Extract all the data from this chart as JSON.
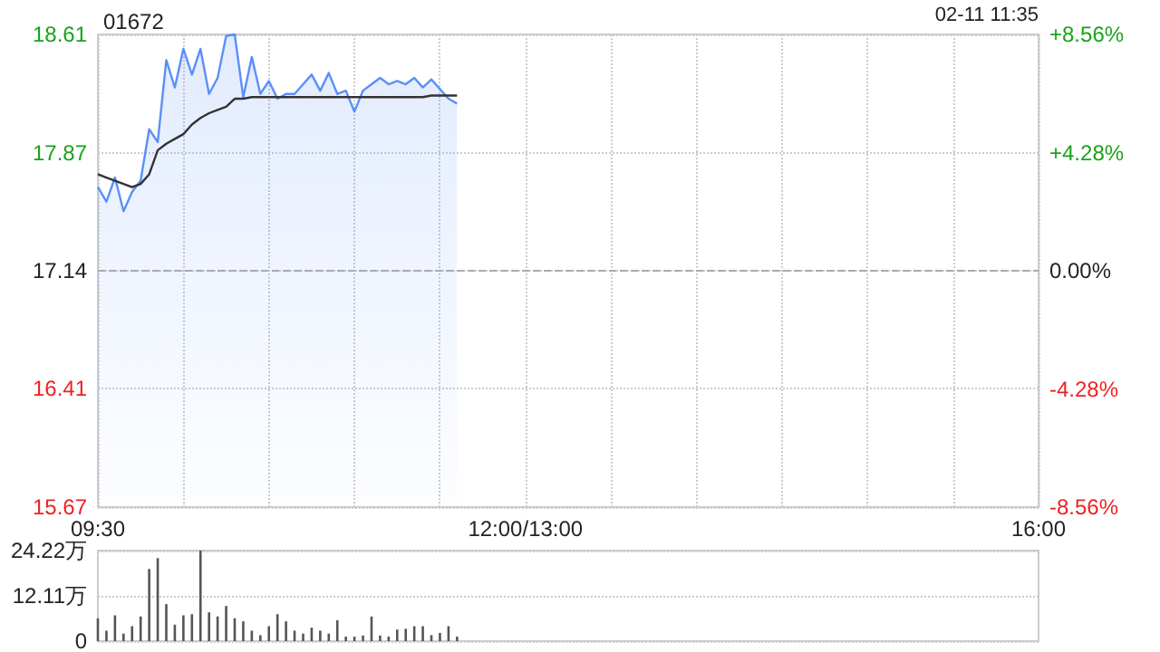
{
  "chart_data": [
    {
      "type": "area",
      "title": "01672",
      "annotations": [
        "02-11 11:35"
      ],
      "categories": [
        "09:30",
        null,
        null,
        null,
        null,
        null,
        null,
        null,
        null,
        null,
        null,
        null,
        null,
        null,
        null,
        null,
        null,
        null,
        null,
        null,
        null,
        null,
        null,
        null,
        null,
        null,
        null,
        null,
        null,
        null,
        null,
        null,
        null,
        null,
        null,
        null,
        null,
        null,
        null,
        null,
        null,
        null,
        null,
        null,
        null,
        null,
        null,
        null,
        null,
        null,
        "12:00/13:00",
        null,
        null,
        null,
        null,
        null,
        null,
        null,
        null,
        null,
        null,
        null,
        null,
        null,
        null,
        null,
        null,
        null,
        null,
        null,
        null,
        null,
        null,
        null,
        null,
        null,
        null,
        null,
        null,
        null,
        null,
        null,
        null,
        null,
        null,
        null,
        null,
        null,
        null,
        null,
        null,
        null,
        null,
        null,
        null,
        null,
        null,
        null,
        null,
        null,
        null,
        null,
        null,
        null,
        null,
        null,
        null,
        null,
        null,
        null,
        "16:00"
      ],
      "ylim": [
        15.67,
        18.61
      ],
      "yticks": [
        15.67,
        16.41,
        17.14,
        17.87,
        18.61
      ],
      "y2lim": [
        -8.56,
        8.56
      ],
      "y2ticks": [
        {
          "value": -8.56,
          "label": "-8.56%"
        },
        {
          "value": -4.28,
          "label": "-4.28%"
        },
        {
          "value": 0,
          "label": "0.00%"
        },
        {
          "value": 4.28,
          "label": "+4.28%"
        },
        {
          "value": 8.56,
          "label": "+8.56%"
        }
      ],
      "ref_lines": [
        {
          "axis": "y",
          "value": 17.14,
          "line_style": "dashed",
          "color": "#aaaaaa"
        }
      ],
      "grid": true,
      "marker": "none",
      "series": [
        {
          "color": "#5b8ff9",
          "values": [
            17.66,
            17.57,
            17.72,
            17.51,
            17.63,
            17.7,
            18.02,
            17.94,
            18.45,
            18.28,
            18.52,
            18.36,
            18.52,
            18.24,
            18.34,
            18.6,
            18.61,
            18.22,
            18.47,
            18.24,
            18.32,
            18.21,
            18.24,
            18.24,
            18.3,
            18.36,
            18.26,
            18.37,
            18.24,
            18.26,
            18.13,
            18.26,
            18.3,
            18.34,
            18.3,
            18.32,
            18.3,
            18.34,
            18.28,
            18.33,
            18.27,
            18.21,
            18.18,
            null,
            null,
            null,
            null,
            null,
            null,
            null,
            null,
            null,
            null,
            null,
            null,
            null,
            null,
            null,
            null,
            null,
            null,
            null,
            null,
            null,
            null,
            null,
            null,
            null,
            null,
            null,
            null,
            null,
            null,
            null,
            null,
            null,
            null,
            null,
            null,
            null,
            null,
            null,
            null,
            null,
            null,
            null,
            null,
            null,
            null,
            null,
            null,
            null,
            null,
            null,
            null,
            null,
            null,
            null,
            null,
            null,
            null,
            null,
            null,
            null,
            null,
            null,
            null,
            null,
            null,
            null,
            null
          ]
        },
        {
          "type": "line",
          "color": "#333333",
          "values": [
            17.74,
            17.72,
            17.7,
            17.68,
            17.66,
            17.68,
            17.74,
            17.89,
            17.93,
            17.96,
            17.99,
            18.05,
            18.09,
            18.12,
            18.14,
            18.16,
            18.21,
            18.21,
            18.22,
            18.22,
            18.22,
            18.22,
            18.22,
            18.22,
            18.22,
            18.22,
            18.22,
            18.22,
            18.22,
            18.22,
            18.22,
            18.22,
            18.22,
            18.22,
            18.22,
            18.22,
            18.22,
            18.22,
            18.22,
            18.23,
            18.23,
            18.23,
            18.23,
            null,
            null,
            null,
            null,
            null,
            null,
            null,
            null,
            null,
            null,
            null,
            null,
            null,
            null,
            null,
            null,
            null,
            null,
            null,
            null,
            null,
            null,
            null,
            null,
            null,
            null,
            null,
            null,
            null,
            null,
            null,
            null,
            null,
            null,
            null,
            null,
            null,
            null,
            null,
            null,
            null,
            null,
            null,
            null,
            null,
            null,
            null,
            null,
            null,
            null,
            null,
            null,
            null,
            null,
            null,
            null,
            null,
            null,
            null,
            null,
            null,
            null,
            null,
            null,
            null,
            null,
            null,
            null
          ]
        }
      ]
    },
    {
      "type": "bar",
      "categories": [
        null,
        null,
        null,
        null,
        null,
        null,
        null,
        null,
        null,
        null,
        null,
        null,
        null,
        null,
        null,
        null,
        null,
        null,
        null,
        null,
        null,
        null,
        null,
        null,
        null,
        null,
        null,
        null,
        null,
        null,
        null,
        null,
        null,
        null,
        null,
        null,
        null,
        null,
        null,
        null,
        null,
        null,
        null,
        null,
        null,
        null,
        null,
        null,
        null,
        null,
        null,
        null,
        null,
        null,
        null,
        null,
        null,
        null,
        null,
        null,
        null,
        null,
        null,
        null,
        null,
        null,
        null,
        null,
        null,
        null,
        null,
        null,
        null,
        null,
        null,
        null,
        null,
        null,
        null,
        null,
        null,
        null,
        null,
        null,
        null,
        null,
        null,
        null,
        null,
        null,
        null,
        null,
        null,
        null,
        null,
        null,
        null,
        null,
        null,
        null,
        null,
        null,
        null,
        null,
        null,
        null,
        null,
        null,
        null,
        null,
        null
      ],
      "ylim": [
        0,
        24.22
      ],
      "yticks": [
        0,
        {
          "value": 12.11,
          "label": "12.11万"
        },
        {
          "value": 24.22,
          "label": "24.22万"
        }
      ],
      "grid": "y",
      "tick_labels": "y",
      "series": [
        {
          "color": "#555555",
          "values": [
            6.1,
            2.8,
            6.9,
            2,
            4,
            6.6,
            19.3,
            22.2,
            9.9,
            4.4,
            6.9,
            7.2,
            24.2,
            7.7,
            6.6,
            9.4,
            6.1,
            5.3,
            2.8,
            1.6,
            4,
            7.2,
            5.3,
            2.8,
            2,
            3.6,
            2.8,
            2,
            5.6,
            1.2,
            1.2,
            1.5,
            6.6,
            1.5,
            1.2,
            3.1,
            3.3,
            4,
            4,
            1.6,
            2.2,
            4,
            1.2,
            null,
            null,
            null,
            null,
            null,
            null,
            null,
            null,
            null,
            null,
            null,
            null,
            null,
            null,
            null,
            null,
            null,
            null,
            null,
            null,
            null,
            null,
            null,
            null,
            null,
            null,
            null,
            null,
            null,
            null,
            null,
            null,
            null,
            null,
            null,
            null,
            null,
            null,
            null,
            null,
            null,
            null,
            null,
            null,
            null,
            null,
            null,
            null,
            null,
            null,
            null,
            null,
            null,
            null,
            null,
            null,
            null,
            null,
            null,
            null,
            null,
            null,
            null,
            null,
            null,
            null,
            null,
            null
          ]
        }
      ]
    }
  ]
}
